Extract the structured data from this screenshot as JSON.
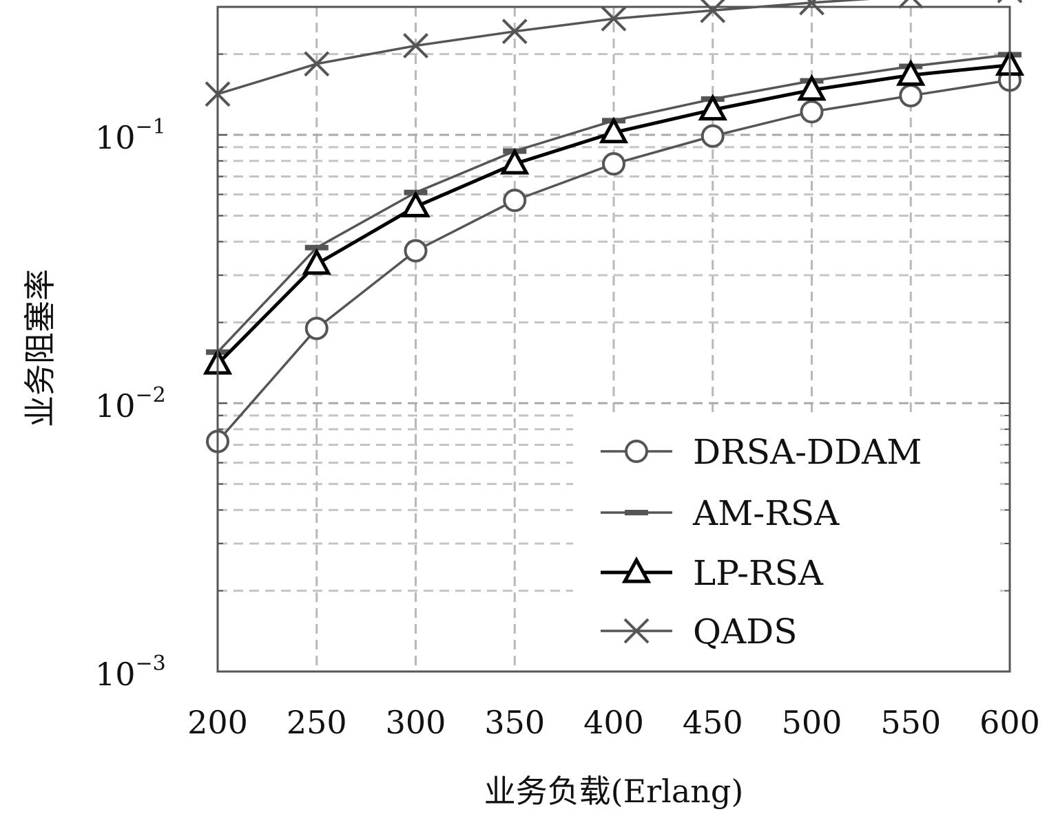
{
  "chart_data": {
    "type": "line",
    "xlabel": "业务负载(Erlang)",
    "ylabel": "业务阻塞率",
    "y_scale": "log",
    "xlim": [
      200,
      600
    ],
    "ylim": [
      0.001,
      0.3
    ],
    "grid": true,
    "legend_position": "bottom-right",
    "x_ticks": [
      "200",
      "250",
      "300",
      "350",
      "400",
      "450",
      "500",
      "550",
      "600"
    ],
    "y_ticks": [
      {
        "value": 0.1,
        "base": "10",
        "exp": "−1"
      },
      {
        "value": 0.01,
        "base": "10",
        "exp": "−2"
      },
      {
        "value": 0.001,
        "base": "10",
        "exp": "−3"
      }
    ],
    "x": [
      200,
      250,
      300,
      350,
      400,
      450,
      500,
      550,
      600
    ],
    "series": [
      {
        "name": "DRSA-DDAM",
        "marker": "circle",
        "color": "#555555",
        "values": [
          0.0072,
          0.019,
          0.037,
          0.057,
          0.078,
          0.099,
          0.122,
          0.14,
          0.16
        ]
      },
      {
        "name": "AM-RSA",
        "marker": "dash",
        "color": "#555555",
        "values": [
          0.0155,
          0.038,
          0.061,
          0.087,
          0.113,
          0.136,
          0.159,
          0.18,
          0.199
        ]
      },
      {
        "name": "LP-RSA",
        "marker": "triangle",
        "color": "#000000",
        "values": [
          0.014,
          0.033,
          0.054,
          0.078,
          0.102,
          0.124,
          0.147,
          0.167,
          0.182
        ]
      },
      {
        "name": "QADS",
        "marker": "x",
        "color": "#555555",
        "values": [
          0.142,
          0.184,
          0.215,
          0.243,
          0.271,
          0.291,
          0.311,
          0.329,
          0.345
        ]
      }
    ]
  }
}
